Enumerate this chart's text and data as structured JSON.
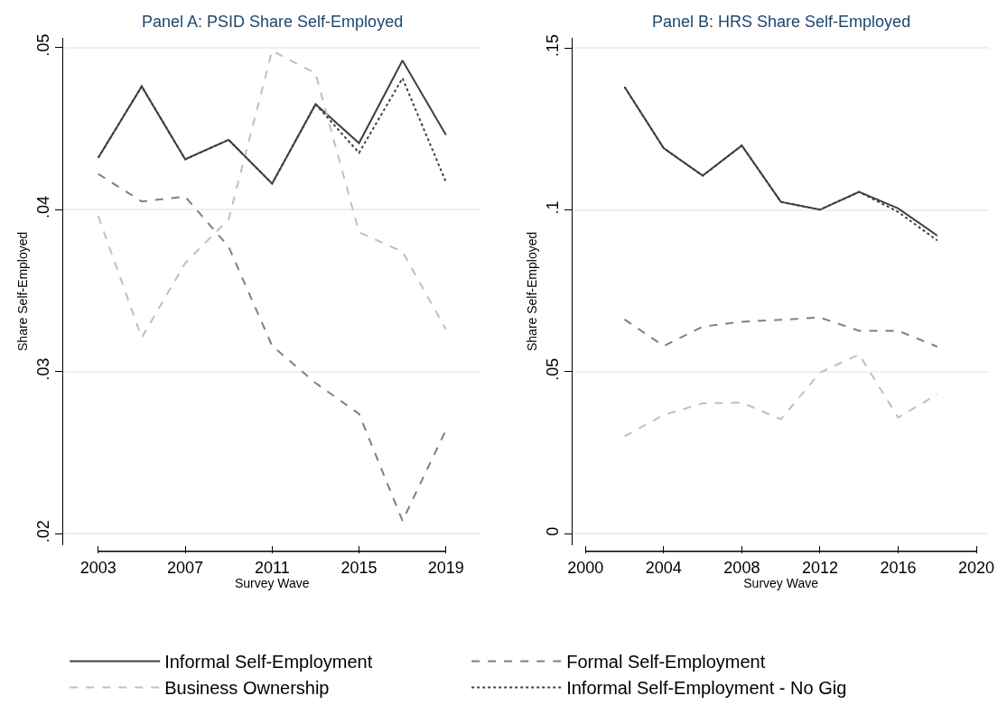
{
  "chart_data": [
    {
      "type": "line",
      "title": "Panel A: PSID Share Self-Employed",
      "xlabel": "Survey Wave",
      "ylabel": "Share Self-Employed",
      "x": [
        2003,
        2005,
        2007,
        2009,
        2011,
        2013,
        2015,
        2017,
        2019
      ],
      "series": [
        {
          "name": "Informal Self-Employment",
          "color": "#404040",
          "line_style": "solid",
          "values": [
            0.0432,
            0.0476,
            0.0431,
            0.0443,
            0.0416,
            0.0465,
            0.0441,
            0.0492,
            0.0446
          ]
        },
        {
          "name": "Formal Self-Employment",
          "color": "#7f7f7f",
          "line_style": "dashed",
          "values": [
            0.0422,
            0.0405,
            0.0408,
            0.0377,
            0.0316,
            0.0293,
            0.0274,
            0.0208,
            0.0264
          ]
        },
        {
          "name": "Business Ownership",
          "color": "#bfbfbf",
          "line_style": "dashed",
          "values": [
            0.0396,
            0.0321,
            0.0367,
            0.0394,
            0.0498,
            0.0484,
            0.0386,
            0.0374,
            0.0326
          ]
        },
        {
          "name": "Informal Self-Employment - No Gig",
          "color": "#404040",
          "line_style": "dotted",
          "values": [
            0.0432,
            0.0476,
            0.0431,
            0.0443,
            0.0416,
            0.0465,
            0.0435,
            0.0481,
            0.0417
          ]
        }
      ],
      "xlim": [
        2001.4,
        2020.6
      ],
      "xticks": [
        2003,
        2007,
        2011,
        2015,
        2019
      ],
      "ylim": [
        0.0193,
        0.0506
      ],
      "yticks": [
        {
          "value": 0.02,
          "label": ".02"
        },
        {
          "value": 0.03,
          "label": ".03"
        },
        {
          "value": 0.04,
          "label": ".04"
        },
        {
          "value": 0.05,
          "label": ".05"
        }
      ],
      "grid": "y",
      "legend": "bottom",
      "marker": "none"
    },
    {
      "type": "line",
      "title": "Panel B: HRS Share Self-Employed",
      "xlabel": "Survey Wave",
      "ylabel": "Share Self-Employed",
      "x": [
        2002,
        2004,
        2006,
        2008,
        2010,
        2012,
        2014,
        2016,
        2018
      ],
      "series": [
        {
          "color": "#404040",
          "line_style": "solid",
          "values": [
            0.138,
            0.1191,
            0.1106,
            0.1199,
            0.1025,
            0.1001,
            0.1056,
            0.1005,
            0.0921
          ]
        },
        {
          "color": "#7f7f7f",
          "line_style": "dashed",
          "values": [
            0.0662,
            0.058,
            0.064,
            0.0655,
            0.0661,
            0.0668,
            0.0627,
            0.0627,
            0.0578
          ]
        },
        {
          "color": "#bfbfbf",
          "line_style": "dashed",
          "values": [
            0.0301,
            0.0367,
            0.0403,
            0.0405,
            0.0354,
            0.0498,
            0.0554,
            0.0359,
            0.0431
          ]
        },
        {
          "color": "#404040",
          "line_style": "dotted",
          "values": [
            0.138,
            0.1191,
            0.1106,
            0.1199,
            0.1025,
            0.1001,
            0.1056,
            0.0994,
            0.0906
          ]
        }
      ],
      "xlim": [
        1999.35,
        2020.65
      ],
      "xticks": [
        2000,
        2004,
        2008,
        2012,
        2016,
        2020
      ],
      "ylim": [
        -0.0035,
        0.1532
      ],
      "yticks": [
        0,
        {
          "value": 0.05,
          "label": ".05"
        },
        {
          "value": 0.1,
          "label": ".1"
        },
        {
          "value": 0.15,
          "label": ".15"
        }
      ],
      "grid": "y",
      "marker": "none"
    }
  ]
}
